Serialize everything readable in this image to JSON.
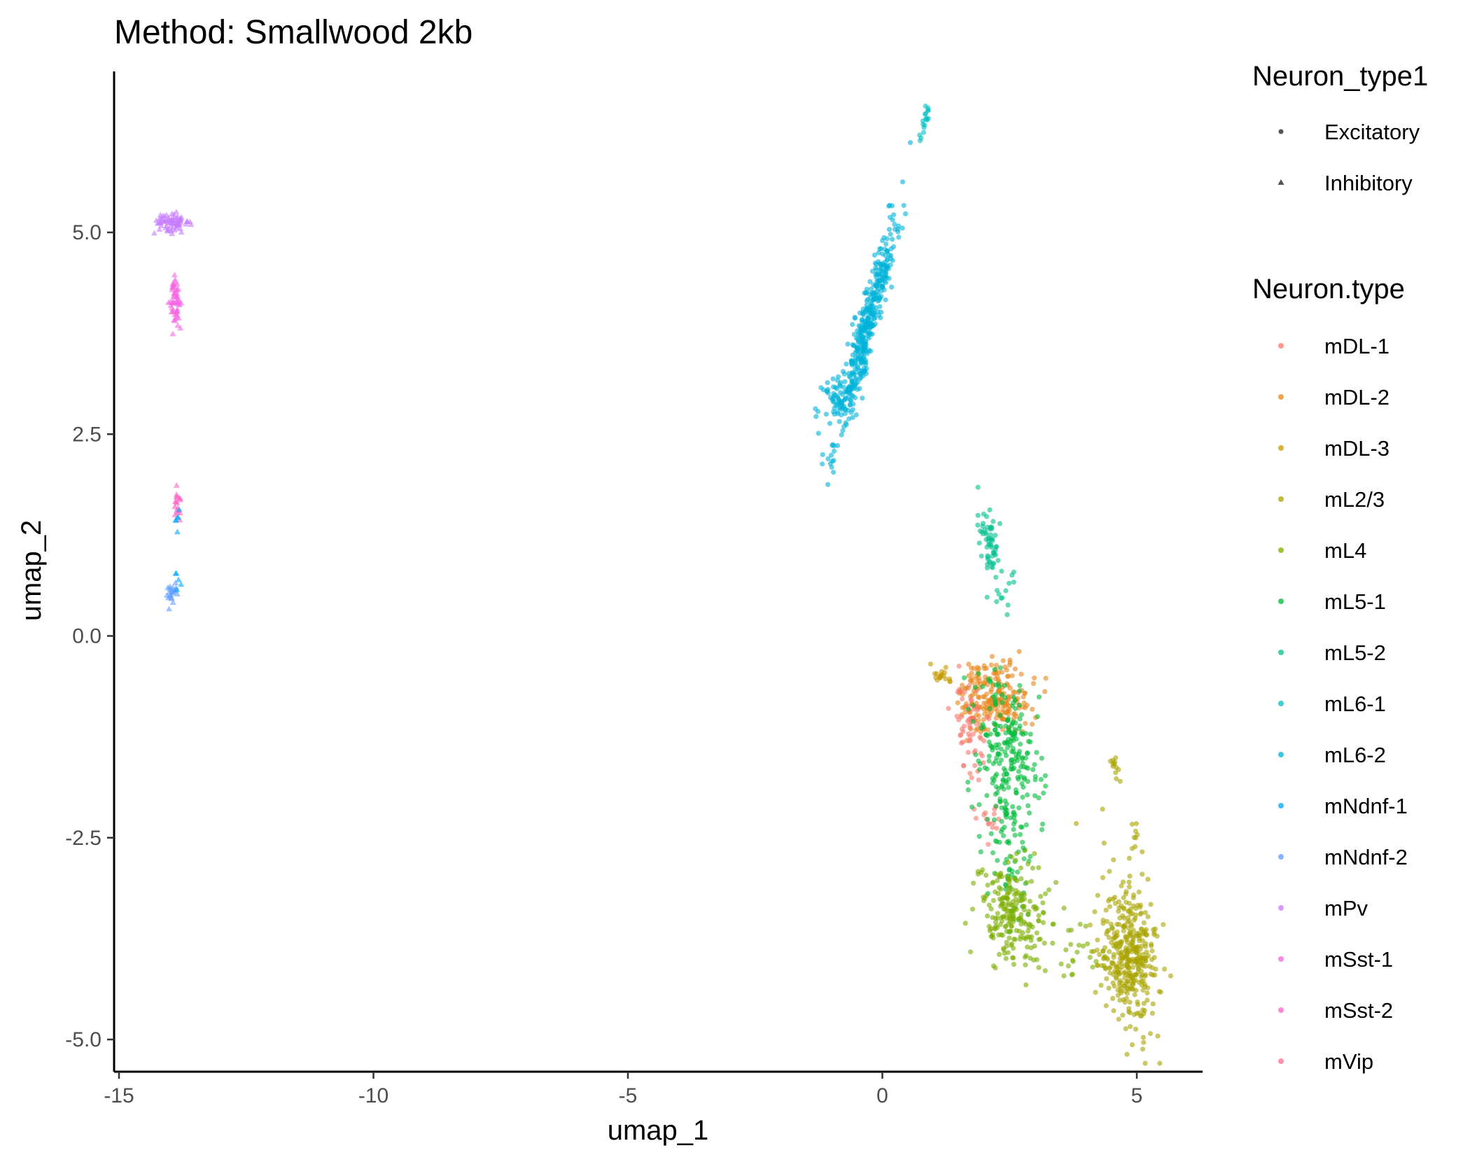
{
  "chart_data": {
    "type": "scatter",
    "title": "Method: Smallwood 2kb",
    "xlabel": "umap_1",
    "ylabel": "umap_2",
    "xlim": [
      -15.2,
      6.3
    ],
    "ylim": [
      -5.4,
      7.0
    ],
    "x_ticks": [
      -15,
      -10,
      -5,
      0,
      5
    ],
    "x_tick_labels": [
      "-15",
      "-10",
      "-5",
      "0",
      "5"
    ],
    "y_ticks": [
      -5,
      -2.5,
      0,
      2.5,
      5
    ],
    "y_tick_labels": [
      "-5.0",
      "-2.5",
      "0.0",
      "2.5",
      "5.0"
    ],
    "grid": false,
    "legend_position": "right",
    "shape_legend": {
      "title": "Neuron_type1",
      "entries": [
        {
          "label": "Excitatory",
          "shape": "circle"
        },
        {
          "label": "Inhibitory",
          "shape": "triangle"
        }
      ]
    },
    "color_legend": {
      "title": "Neuron.type",
      "entries": [
        {
          "label": "mDL-1",
          "color": "#F8766D"
        },
        {
          "label": "mDL-2",
          "color": "#E7861B"
        },
        {
          "label": "mDL-3",
          "color": "#C59900"
        },
        {
          "label": "mL2/3",
          "color": "#A9A400"
        },
        {
          "label": "mL4",
          "color": "#7CAE00"
        },
        {
          "label": "mL5-1",
          "color": "#00BA38"
        },
        {
          "label": "mL5-2",
          "color": "#00C08D"
        },
        {
          "label": "mL6-1",
          "color": "#00BFC4"
        },
        {
          "label": "mL6-2",
          "color": "#00B2D9"
        },
        {
          "label": "mNdnf-1",
          "color": "#00A5FF"
        },
        {
          "label": "mNdnf-2",
          "color": "#619CFF"
        },
        {
          "label": "mPv",
          "color": "#C77CFF"
        },
        {
          "label": "mSst-1",
          "color": "#F564E3"
        },
        {
          "label": "mSst-2",
          "color": "#FF61C3"
        },
        {
          "label": "mVip",
          "color": "#FF6C90"
        }
      ]
    },
    "clusters": [
      {
        "type": "mL6-2",
        "shape": "circle",
        "n": 420,
        "cx": -0.3,
        "cy": 3.85,
        "along": [
          0.38,
          0.92
        ],
        "sd_along": 0.75,
        "sd_across": 0.1
      },
      {
        "type": "mL6-2",
        "shape": "circle",
        "n": 60,
        "cx": -0.9,
        "cy": 2.95,
        "along": [
          0.38,
          0.92
        ],
        "sd_along": 0.2,
        "sd_across": 0.15
      },
      {
        "type": "mL6-1",
        "shape": "circle",
        "n": 18,
        "cx": 0.85,
        "cy": 6.4,
        "along": [
          0.3,
          0.95
        ],
        "sd_along": 0.12,
        "sd_across": 0.03
      },
      {
        "type": "mL5-2",
        "shape": "circle",
        "n": 60,
        "cx": 2.1,
        "cy": 1.15,
        "along": [
          0.3,
          -0.95
        ],
        "sd_along": 0.25,
        "sd_across": 0.09
      },
      {
        "type": "mL5-2",
        "shape": "circle",
        "n": 12,
        "cx": 2.45,
        "cy": 0.55,
        "along": [
          0.3,
          -0.95
        ],
        "sd_along": 0.25,
        "sd_across": 0.12
      },
      {
        "type": "mDL-2",
        "shape": "circle",
        "n": 220,
        "cx": 2.2,
        "cy": -0.75,
        "along": [
          1,
          0
        ],
        "sd_along": 0.35,
        "sd_across": 0.22
      },
      {
        "type": "mDL-1",
        "shape": "circle",
        "n": 60,
        "cx": 1.75,
        "cy": -1.15,
        "along": [
          0.2,
          -0.98
        ],
        "sd_along": 0.35,
        "sd_across": 0.14
      },
      {
        "type": "mDL-1",
        "shape": "circle",
        "n": 15,
        "cx": 2.1,
        "cy": -2.3,
        "along": [
          1,
          0
        ],
        "sd_along": 0.2,
        "sd_across": 0.12
      },
      {
        "type": "mDL-3",
        "shape": "circle",
        "n": 18,
        "cx": 1.15,
        "cy": -0.5,
        "along": [
          0.9,
          -0.4
        ],
        "sd_along": 0.12,
        "sd_across": 0.05
      },
      {
        "type": "mL5-1",
        "shape": "circle",
        "n": 230,
        "cx": 2.45,
        "cy": -1.5,
        "along": [
          0.15,
          -0.99
        ],
        "sd_along": 0.5,
        "sd_across": 0.3
      },
      {
        "type": "mL5-1",
        "shape": "circle",
        "n": 60,
        "cx": 2.5,
        "cy": -2.6,
        "along": [
          0.2,
          -0.98
        ],
        "sd_along": 0.5,
        "sd_across": 0.25
      },
      {
        "type": "mL4",
        "shape": "circle",
        "n": 220,
        "cx": 2.55,
        "cy": -3.45,
        "along": [
          0.3,
          -0.95
        ],
        "sd_along": 0.35,
        "sd_across": 0.3
      },
      {
        "type": "mL4",
        "shape": "circle",
        "n": 30,
        "cx": 3.7,
        "cy": -3.9,
        "along": [
          1,
          0
        ],
        "sd_along": 0.5,
        "sd_across": 0.2
      },
      {
        "type": "mL2/3",
        "shape": "circle",
        "n": 380,
        "cx": 4.85,
        "cy": -3.95,
        "along": [
          0.15,
          -0.99
        ],
        "sd_along": 0.45,
        "sd_across": 0.28
      },
      {
        "type": "mL2/3",
        "shape": "circle",
        "n": 12,
        "cx": 4.55,
        "cy": -1.6,
        "along": [
          0.6,
          -0.8
        ],
        "sd_along": 0.1,
        "sd_across": 0.04
      },
      {
        "type": "mL2/3",
        "shape": "circle",
        "n": 8,
        "cx": 4.95,
        "cy": -2.45,
        "along": [
          0,
          -1
        ],
        "sd_along": 0.15,
        "sd_across": 0.04
      },
      {
        "type": "mPv",
        "shape": "triangle",
        "n": 70,
        "cx": -13.95,
        "cy": 5.1,
        "along": [
          1,
          0
        ],
        "sd_along": 0.18,
        "sd_across": 0.07
      },
      {
        "type": "mSst-1",
        "shape": "triangle",
        "n": 55,
        "cx": -13.9,
        "cy": 4.15,
        "along": [
          0,
          1
        ],
        "sd_along": 0.18,
        "sd_across": 0.06
      },
      {
        "type": "mSst-2",
        "shape": "triangle",
        "n": 18,
        "cx": -13.85,
        "cy": 1.6,
        "along": [
          0,
          1
        ],
        "sd_along": 0.1,
        "sd_across": 0.04
      },
      {
        "type": "mNdnf-1",
        "shape": "triangle",
        "n": 6,
        "cx": -13.85,
        "cy": 1.35,
        "along": [
          0,
          1
        ],
        "sd_along": 0.08,
        "sd_across": 0.03
      },
      {
        "type": "mNdnf-2",
        "shape": "triangle",
        "n": 22,
        "cx": -13.95,
        "cy": 0.52,
        "along": [
          0,
          1
        ],
        "sd_along": 0.07,
        "sd_across": 0.05
      },
      {
        "type": "mNdnf-1",
        "shape": "triangle",
        "n": 5,
        "cx": -13.85,
        "cy": 0.72,
        "along": [
          0,
          1
        ],
        "sd_along": 0.06,
        "sd_across": 0.03
      }
    ]
  }
}
